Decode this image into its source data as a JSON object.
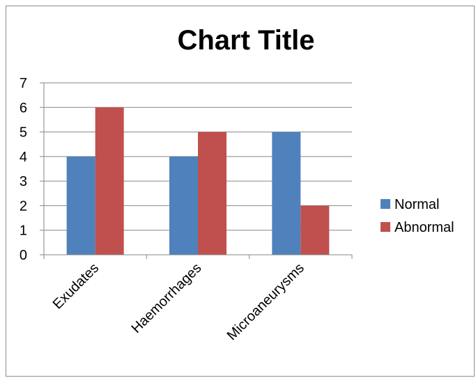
{
  "chart_data": {
    "type": "bar",
    "title": "Chart Title",
    "categories": [
      "Exudates",
      "Haemorrhages",
      "Microaneurysms"
    ],
    "series": [
      {
        "name": "Normal",
        "values": [
          4,
          4,
          5
        ],
        "color": "#4f81bd"
      },
      {
        "name": "Abnormal",
        "values": [
          6,
          5,
          2
        ],
        "color": "#c0504d"
      }
    ],
    "ylim": [
      0,
      7
    ],
    "yticks": [
      0,
      1,
      2,
      3,
      4,
      5,
      6,
      7
    ],
    "grid": true,
    "legend_position": "right"
  }
}
